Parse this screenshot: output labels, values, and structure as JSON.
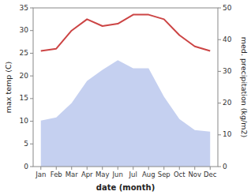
{
  "chart_data": {
    "type": "line",
    "xlabel": "date (month)",
    "ylabel": "max temp (C)",
    "y2label": "med. precipitation (kg/m2)",
    "categories": [
      "Jan",
      "Feb",
      "Mar",
      "Apr",
      "May",
      "Jun",
      "Jul",
      "Aug",
      "Sep",
      "Oct",
      "Nov",
      "Dec"
    ],
    "series": [
      {
        "type": "area",
        "axis": "y2",
        "color": "#c5d0f0",
        "values": [
          14.5,
          15.5,
          20.0,
          27.0,
          30.5,
          33.5,
          31.0,
          31.0,
          22.0,
          15.0,
          11.5,
          11.0
        ]
      },
      {
        "type": "line",
        "color": "#cc4444",
        "values": [
          25.5,
          26.0,
          30.0,
          32.5,
          31.0,
          31.5,
          33.5,
          33.5,
          32.5,
          29.0,
          26.5,
          25.5
        ]
      }
    ],
    "ylim": [
      0,
      35
    ],
    "yticks": [
      0,
      5,
      10,
      15,
      20,
      25,
      30,
      35
    ],
    "y2lim": [
      0,
      50
    ],
    "y2ticks": [
      0,
      10,
      20,
      30,
      40,
      50
    ],
    "grid": false
  }
}
